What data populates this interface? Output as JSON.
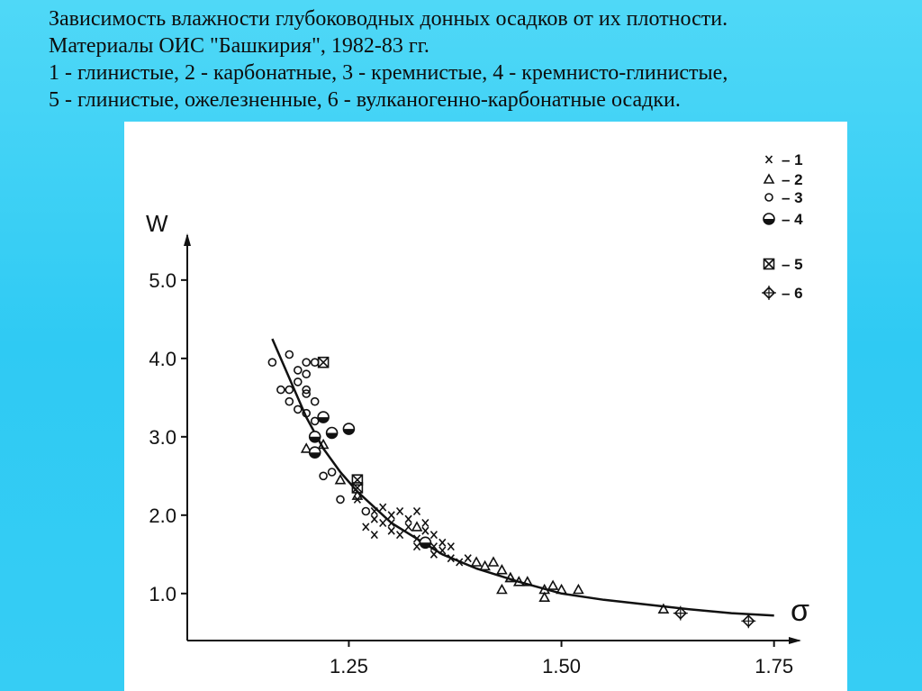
{
  "caption": {
    "line1": "Зависимость влажности глубоководных донных осадков от их плотности.",
    "line2": "Материалы ОИС \"Башкирия\", 1982-83 гг.",
    "line3": "1 - глинистые, 2 - карбонатные, 3 - кремнистые, 4 - кремнисто-глинистые,",
    "line4": "5 - глинистые, ожелезненные, 6 - вулканогенно-карбонатные осадки."
  },
  "chart_data": {
    "type": "scatter",
    "xlabel": "σ",
    "ylabel": "W",
    "xlim": [
      1.06,
      1.78
    ],
    "ylim": [
      0.4,
      5.55
    ],
    "xticks": [
      {
        "value": 1.25,
        "label": "1.25"
      },
      {
        "value": 1.5,
        "label": "1.50"
      },
      {
        "value": 1.75,
        "label": "1.75"
      }
    ],
    "yticks": [
      {
        "value": 1.0,
        "label": "1.0"
      },
      {
        "value": 2.0,
        "label": "2.0"
      },
      {
        "value": 3.0,
        "label": "3.0"
      },
      {
        "value": 4.0,
        "label": "4.0"
      },
      {
        "value": 5.0,
        "label": "5.0"
      }
    ],
    "grid": false,
    "legend_position": "top-right",
    "series": [
      {
        "name": "1",
        "marker": "x",
        "points": [
          [
            1.27,
            1.85
          ],
          [
            1.28,
            1.95
          ],
          [
            1.28,
            2.05
          ],
          [
            1.29,
            1.9
          ],
          [
            1.29,
            2.1
          ],
          [
            1.3,
            2.0
          ],
          [
            1.3,
            1.8
          ],
          [
            1.31,
            2.05
          ],
          [
            1.31,
            1.75
          ],
          [
            1.32,
            1.95
          ],
          [
            1.32,
            1.85
          ],
          [
            1.33,
            2.05
          ],
          [
            1.33,
            1.7
          ],
          [
            1.34,
            1.8
          ],
          [
            1.34,
            1.9
          ],
          [
            1.35,
            1.6
          ],
          [
            1.35,
            1.75
          ],
          [
            1.36,
            1.65
          ],
          [
            1.36,
            1.55
          ],
          [
            1.37,
            1.45
          ],
          [
            1.37,
            1.6
          ],
          [
            1.38,
            1.4
          ],
          [
            1.39,
            1.45
          ],
          [
            1.3,
            1.9
          ],
          [
            1.28,
            1.75
          ],
          [
            1.33,
            1.6
          ],
          [
            1.35,
            1.5
          ],
          [
            1.26,
            2.2
          ]
        ]
      },
      {
        "name": "2",
        "marker": "triangle",
        "points": [
          [
            1.2,
            2.85
          ],
          [
            1.22,
            2.9
          ],
          [
            1.24,
            2.45
          ],
          [
            1.26,
            2.25
          ],
          [
            1.33,
            1.85
          ],
          [
            1.4,
            1.4
          ],
          [
            1.41,
            1.35
          ],
          [
            1.42,
            1.4
          ],
          [
            1.43,
            1.3
          ],
          [
            1.44,
            1.2
          ],
          [
            1.43,
            1.05
          ],
          [
            1.45,
            1.15
          ],
          [
            1.46,
            1.15
          ],
          [
            1.48,
            1.05
          ],
          [
            1.49,
            1.1
          ],
          [
            1.5,
            1.05
          ],
          [
            1.52,
            1.05
          ],
          [
            1.48,
            0.95
          ],
          [
            1.62,
            0.8
          ],
          [
            1.44,
            1.2
          ]
        ]
      },
      {
        "name": "3",
        "marker": "circle",
        "points": [
          [
            1.16,
            3.95
          ],
          [
            1.17,
            3.6
          ],
          [
            1.18,
            4.05
          ],
          [
            1.18,
            3.6
          ],
          [
            1.19,
            3.85
          ],
          [
            1.19,
            3.7
          ],
          [
            1.2,
            3.95
          ],
          [
            1.2,
            3.8
          ],
          [
            1.21,
            3.95
          ],
          [
            1.19,
            3.35
          ],
          [
            1.2,
            3.3
          ],
          [
            1.21,
            3.2
          ],
          [
            1.2,
            3.55
          ],
          [
            1.22,
            2.5
          ],
          [
            1.23,
            2.55
          ],
          [
            1.24,
            2.2
          ],
          [
            1.27,
            2.05
          ],
          [
            1.18,
            3.45
          ],
          [
            1.2,
            3.6
          ],
          [
            1.21,
            3.45
          ]
        ]
      },
      {
        "name": "4",
        "marker": "half-circle",
        "points": [
          [
            1.21,
            3.0
          ],
          [
            1.21,
            2.8
          ],
          [
            1.22,
            3.25
          ],
          [
            1.23,
            3.05
          ],
          [
            1.25,
            3.1
          ],
          [
            1.34,
            1.65
          ]
        ]
      },
      {
        "name": "5",
        "marker": "boxed-x",
        "points": [
          [
            1.22,
            3.95
          ],
          [
            1.26,
            2.45
          ],
          [
            1.26,
            2.35
          ]
        ]
      },
      {
        "name": "6",
        "marker": "diamond-cross",
        "points": [
          [
            1.64,
            0.75
          ],
          [
            1.72,
            0.65
          ]
        ]
      }
    ],
    "trend_line": {
      "x": [
        1.16,
        1.18,
        1.2,
        1.22,
        1.24,
        1.26,
        1.28,
        1.3,
        1.33,
        1.36,
        1.4,
        1.45,
        1.5,
        1.55,
        1.6,
        1.65,
        1.7,
        1.75
      ],
      "y": [
        4.25,
        3.75,
        3.25,
        2.85,
        2.55,
        2.3,
        2.1,
        1.9,
        1.7,
        1.5,
        1.32,
        1.15,
        1.0,
        0.92,
        0.86,
        0.8,
        0.75,
        0.72
      ]
    }
  }
}
